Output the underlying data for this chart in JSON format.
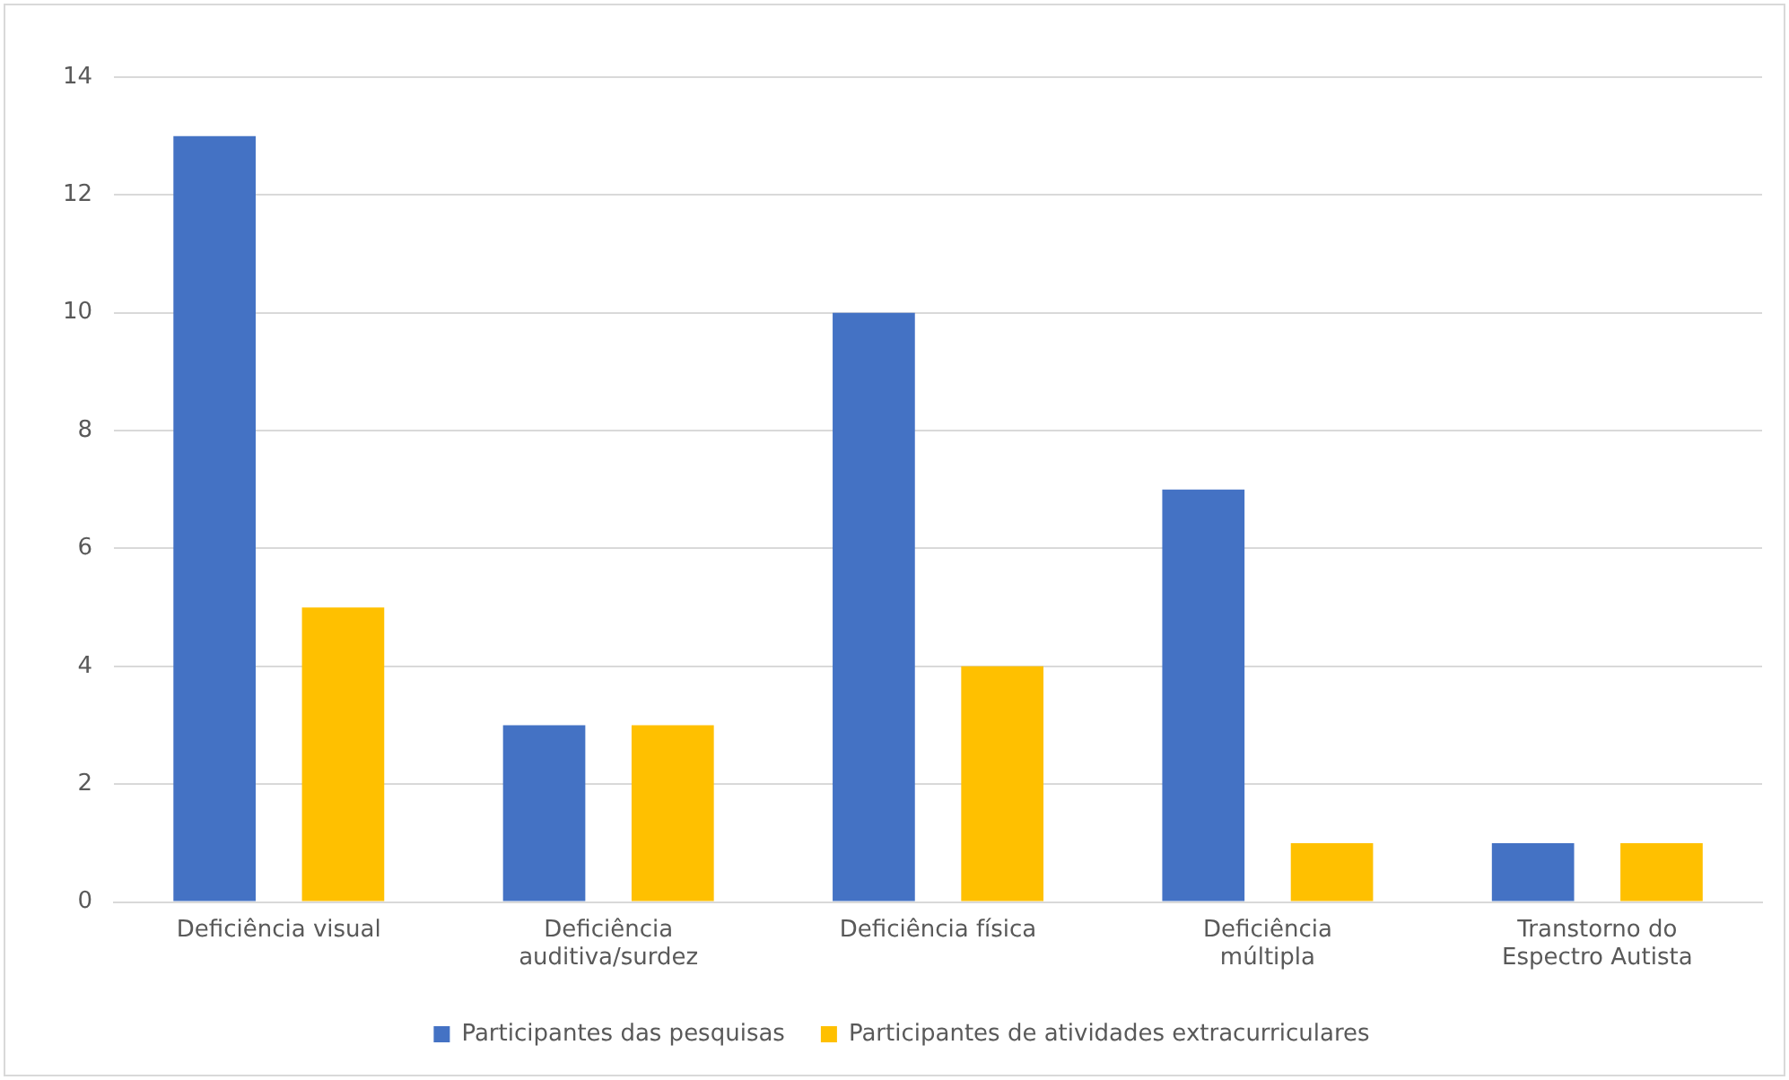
{
  "chart_data": {
    "type": "bar",
    "categories": [
      "Deficiência visual",
      "Deficiência auditiva/surdez",
      "Deficiência física",
      "Deficiência múltipla",
      "Transtorno do Espectro Autista"
    ],
    "series": [
      {
        "name": "Participantes das pesquisas",
        "color": "#4472c4",
        "values": [
          13,
          3,
          10,
          7,
          1
        ]
      },
      {
        "name": "Participantes de atividades extracurriculares",
        "color": "#ffc000",
        "values": [
          5,
          3,
          4,
          1,
          1
        ]
      }
    ],
    "ylim": [
      0,
      14
    ],
    "yticks": [
      0,
      2,
      4,
      6,
      8,
      10,
      12,
      14
    ],
    "grid": "y",
    "legend": "bottom"
  }
}
